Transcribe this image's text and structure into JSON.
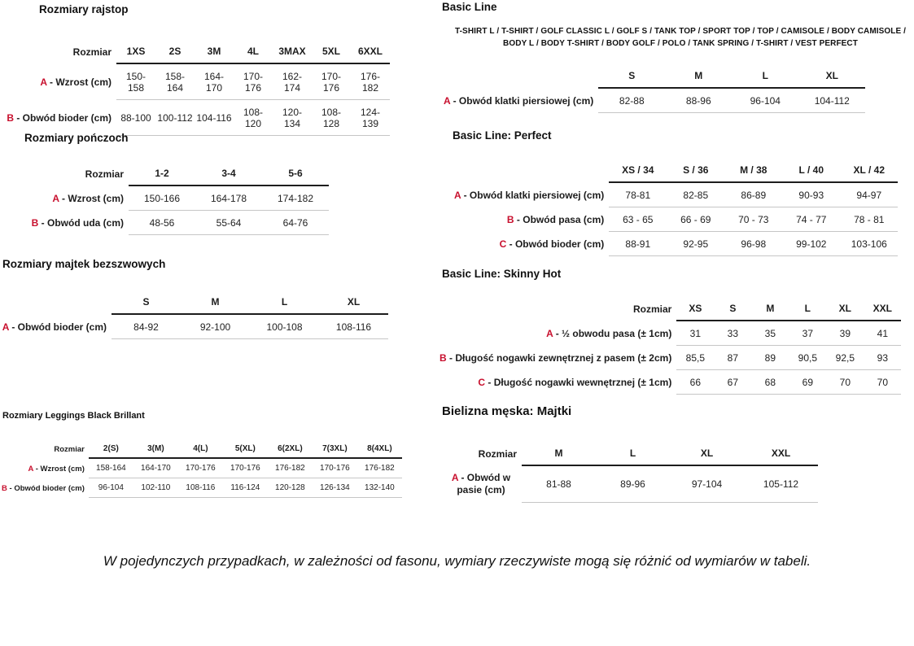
{
  "page": {
    "footer_note": "W pojedynczych przypadkach, w zależności od fasonu, wymiary rzeczywiste mogą się różnić od wymiarów w tabeli.",
    "accent_red": "#c8102e"
  },
  "sections": {
    "rajstop": {
      "title": "Rozmiary rajstop",
      "table": {
        "corner": "Rozmiar",
        "columns": [
          "1XS",
          "2S",
          "3M",
          "4L",
          "3MAX",
          "5XL",
          "6XXL"
        ],
        "rows": [
          {
            "letter": "A",
            "label": "Wzrost (cm)",
            "values": [
              "150-158",
              "158-164",
              "164-170",
              "170-176",
              "162-174",
              "170-176",
              "176-182"
            ]
          },
          {
            "letter": "B",
            "label": "Obwód bioder (cm)",
            "values": [
              "88-100",
              "100-112",
              "104-116",
              "108-120",
              "120-134",
              "108-128",
              "124-139"
            ]
          }
        ]
      }
    },
    "ponczoch": {
      "title": "Rozmiary pończoch",
      "table": {
        "corner": "Rozmiar",
        "columns": [
          "1-2",
          "3-4",
          "5-6"
        ],
        "rows": [
          {
            "letter": "A",
            "label": "Wzrost (cm)",
            "values": [
              "150-166",
              "164-178",
              "174-182"
            ]
          },
          {
            "letter": "B",
            "label": "Obwód uda (cm)",
            "values": [
              "48-56",
              "55-64",
              "64-76"
            ]
          }
        ]
      }
    },
    "majtek_bezszwowe": {
      "title": "Rozmiary majtek bezszwowych",
      "table": {
        "corner": "",
        "columns": [
          "S",
          "M",
          "L",
          "XL"
        ],
        "rows": [
          {
            "letter": "A",
            "label": "Obwód bioder (cm)",
            "values": [
              "84-92",
              "92-100",
              "100-108",
              "108-116"
            ]
          }
        ]
      }
    },
    "leggings": {
      "title": "Rozmiary Leggings Black Brillant",
      "table": {
        "corner": "Rozmiar",
        "columns": [
          "2(S)",
          "3(M)",
          "4(L)",
          "5(XL)",
          "6(2XL)",
          "7(3XL)",
          "8(4XL)"
        ],
        "rows": [
          {
            "letter": "A",
            "label": "Wzrost (cm)",
            "values": [
              "158-164",
              "164-170",
              "170-176",
              "170-176",
              "176-182",
              "170-176",
              "176-182"
            ]
          },
          {
            "letter": "B",
            "label": "Obwód bioder (cm)",
            "values": [
              "96-104",
              "102-110",
              "108-116",
              "116-124",
              "120-128",
              "126-134",
              "132-140"
            ]
          }
        ]
      }
    },
    "basic_line": {
      "title": "Basic Line",
      "products": "T-SHIRT L / T-SHIRT / GOLF CLASSIC L / GOLF S / TANK TOP / SPORT TOP / TOP / CAMISOLE / BODY CAMISOLE / BODY L / BODY T-SHIRT / BODY GOLF / POLO / TANK SPRING / T-SHIRT / VEST PERFECT",
      "table": {
        "corner": "",
        "columns": [
          "S",
          "M",
          "L",
          "XL"
        ],
        "rows": [
          {
            "letter": "A",
            "label": "Obwód klatki piersiowej (cm)",
            "values": [
              "82-88",
              "88-96",
              "96-104",
              "104-112"
            ]
          }
        ]
      }
    },
    "basic_line_perfect": {
      "title": "Basic Line: Perfect",
      "table": {
        "corner": "",
        "columns": [
          "XS / 34",
          "S / 36",
          "M / 38",
          "L / 40",
          "XL / 42"
        ],
        "rows": [
          {
            "letter": "A",
            "label": "Obwód klatki piersiowej (cm)",
            "values": [
              "78-81",
              "82-85",
              "86-89",
              "90-93",
              "94-97"
            ]
          },
          {
            "letter": "B",
            "label": "Obwód pasa (cm)",
            "values": [
              "63 - 65",
              "66 - 69",
              "70 - 73",
              "74 - 77",
              "78 - 81"
            ]
          },
          {
            "letter": "C",
            "label": "Obwód bioder (cm)",
            "values": [
              "88-91",
              "92-95",
              "96-98",
              "99-102",
              "103-106"
            ]
          }
        ]
      }
    },
    "basic_line_skinny_hot": {
      "title": "Basic Line: Skinny Hot",
      "table": {
        "corner": "Rozmiar",
        "columns": [
          "XS",
          "S",
          "M",
          "L",
          "XL",
          "XXL"
        ],
        "rows": [
          {
            "letter": "A",
            "label": "½ obwodu pasa (± 1cm)",
            "values": [
              "31",
              "33",
              "35",
              "37",
              "39",
              "41"
            ]
          },
          {
            "letter": "B",
            "label": "Długość nogawki zewnętrznej z pasem (± 2cm)",
            "values": [
              "85,5",
              "87",
              "89",
              "90,5",
              "92,5",
              "93"
            ]
          },
          {
            "letter": "C",
            "label": "Długość nogawki wewnętrznej (± 1cm)",
            "values": [
              "66",
              "67",
              "68",
              "69",
              "70",
              "70"
            ]
          }
        ]
      }
    },
    "bielizna_meska_majtki": {
      "title": "Bielizna męska: Majtki",
      "table": {
        "corner": "Rozmiar",
        "columns": [
          "M",
          "L",
          "XL",
          "XXL"
        ],
        "rows": [
          {
            "letter": "A",
            "label": "Obwód w pasie (cm)",
            "values": [
              "81-88",
              "89-96",
              "97-104",
              "105-112"
            ]
          }
        ]
      }
    }
  }
}
